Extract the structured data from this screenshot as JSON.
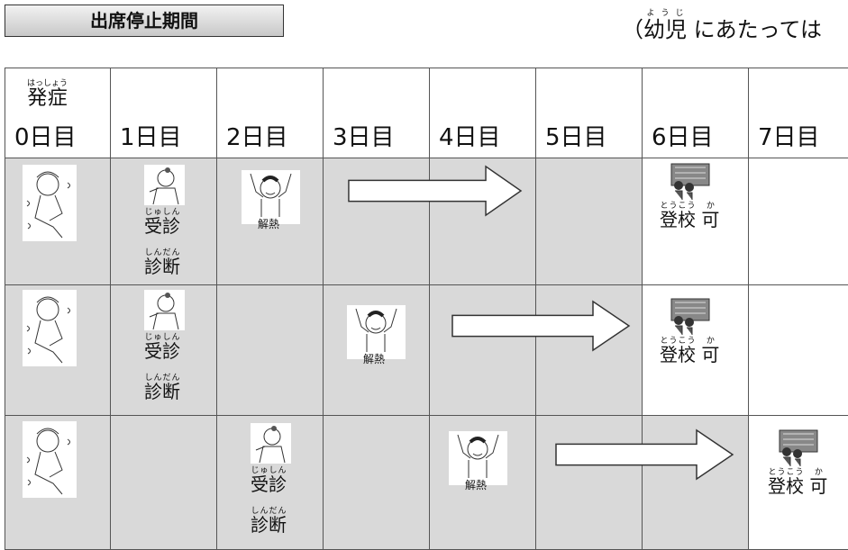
{
  "header": {
    "title": "出席停止期間",
    "note": {
      "open": "（",
      "ruby": "ようじ",
      "base": "幼児",
      "rest": "にあたっては"
    }
  },
  "table": {
    "onset": {
      "ruby": "はっしょう",
      "base": "発症"
    },
    "days": [
      "0日目",
      "1日目",
      "2日目",
      "3日目",
      "4日目",
      "5日目",
      "6日目",
      "7日目"
    ],
    "rows": [
      {
        "fever_label": "解熱",
        "visit": {
          "ruby": "じゅしん",
          "base": "受診"
        },
        "diagnosis": {
          "ruby": "しんだん",
          "base": "診断"
        },
        "school": {
          "ruby": "とうこう",
          "base": "登校",
          "ruby2": "か",
          "base2": "可"
        }
      },
      {
        "fever_label": "解熱",
        "visit": {
          "ruby": "じゅしん",
          "base": "受診"
        },
        "diagnosis": {
          "ruby": "しんだん",
          "base": "診断"
        },
        "school": {
          "ruby": "とうこう",
          "base": "登校",
          "ruby2": "か",
          "base2": "可"
        }
      },
      {
        "fever_label": "解熱",
        "visit": {
          "ruby": "じゅしん",
          "base": "受診"
        },
        "diagnosis": {
          "ruby": "しんだん",
          "base": "診断"
        },
        "school": {
          "ruby": "とうこう",
          "base": "登校",
          "ruby2": "か",
          "base2": "可"
        }
      }
    ]
  }
}
